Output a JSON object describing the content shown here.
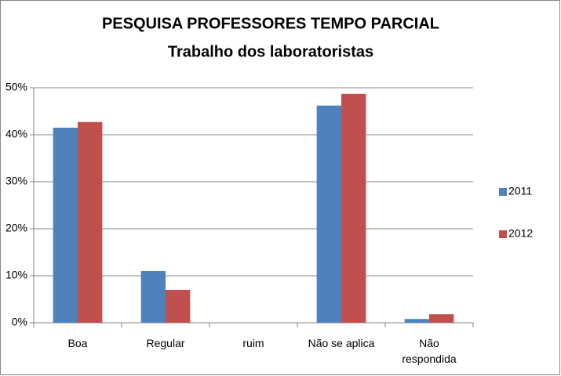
{
  "chart_data": {
    "type": "bar",
    "title": "PESQUISA PROFESSORES TEMPO PARCIAL",
    "subtitle": "Trabalho dos laboratoristas",
    "categories": [
      "Boa",
      "Regular",
      "ruim",
      "Não se aplica",
      "Não respondida"
    ],
    "series": [
      {
        "name": "2011",
        "color": "#4f81bd",
        "values": [
          41.5,
          11.0,
          0,
          46.2,
          0.8
        ]
      },
      {
        "name": "2012",
        "color": "#c0504d",
        "values": [
          42.7,
          7.0,
          0,
          48.7,
          1.8
        ]
      }
    ],
    "ylim": [
      0,
      50
    ],
    "yticks": [
      {
        "value": 0,
        "label": "0%"
      },
      {
        "value": 10,
        "label": "10%"
      },
      {
        "value": 20,
        "label": "20%"
      },
      {
        "value": 30,
        "label": "30%"
      },
      {
        "value": 40,
        "label": "40%"
      },
      {
        "value": 50,
        "label": "50%"
      }
    ],
    "grid": true,
    "legend": "right"
  }
}
